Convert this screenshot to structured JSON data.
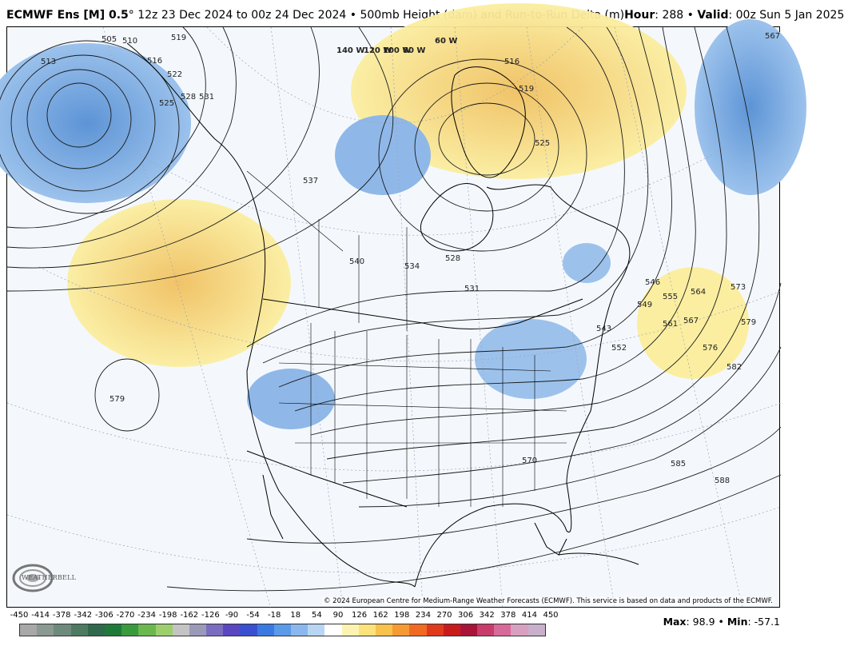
{
  "header": {
    "model": "ECMWF Ens [M] 0.5",
    "degree": "°",
    "run": " 12z 23 Dec 2024 to 00z 24 Dec 2024 • 500mb Height (dam) and Run-to-Run Delta (m)",
    "hour_label": "Hour",
    "hour_value": ": 288 • ",
    "valid_label": "Valid",
    "valid_value": ": 00z Sun 5 Jan 2025"
  },
  "map": {
    "contour_labels": [
      "513",
      "510",
      "505",
      "519",
      "516",
      "522",
      "525",
      "528",
      "531",
      "537",
      "540",
      "534",
      "528",
      "531",
      "543",
      "546",
      "549",
      "552",
      "555",
      "561",
      "564",
      "567",
      "573",
      "576",
      "579",
      "582",
      "585",
      "588",
      "570",
      "579",
      "525",
      "519",
      "516",
      "567"
    ],
    "longitude_labels": [
      "140 W",
      "120 W",
      "100 W",
      "80 W",
      "60 W"
    ],
    "copyright": "© 2024 European Centre for Medium-Range Weather Forecasts (ECMWF). This service is based on data and products of the ECMWF.",
    "logo_text": "WEATHERBELL",
    "colors": {
      "positive": "#f7e389",
      "positive_strong": "#f0c060",
      "negative": "#8fb8e8",
      "negative_strong": "#5d94d6",
      "ocean": "#f4f8fd"
    }
  },
  "legend": {
    "ticks": [
      "-450",
      "-414",
      "-378",
      "-342",
      "-306",
      "-270",
      "-234",
      "-198",
      "-162",
      "-126",
      "-90",
      "-54",
      "-18",
      "18",
      "54",
      "90",
      "126",
      "162",
      "198",
      "234",
      "270",
      "306",
      "342",
      "378",
      "414",
      "450"
    ],
    "colors": [
      "#a8a8a8",
      "#8a9a92",
      "#6e8a7c",
      "#4f7a62",
      "#2f6a4c",
      "#1f7a3a",
      "#3a9a3e",
      "#6ab84e",
      "#9ccf6c",
      "#c4c4c4",
      "#9a9ab8",
      "#7a6cc0",
      "#5a46c0",
      "#3a50d0",
      "#3a7ae0",
      "#5a9ae8",
      "#8ab8ee",
      "#b8d6f4",
      "#ffffff",
      "#fdf3b0",
      "#fce27a",
      "#f9c24c",
      "#f69a34",
      "#f06a24",
      "#e03a1c",
      "#c81c1c",
      "#a81438",
      "#c83c6c",
      "#d86a9a",
      "#d8a0c0",
      "#c8b0cc"
    ]
  },
  "stats": {
    "max_label": "Max",
    "max_value": ": 98.9 • ",
    "min_label": "Min",
    "min_value": ": -57.1"
  }
}
